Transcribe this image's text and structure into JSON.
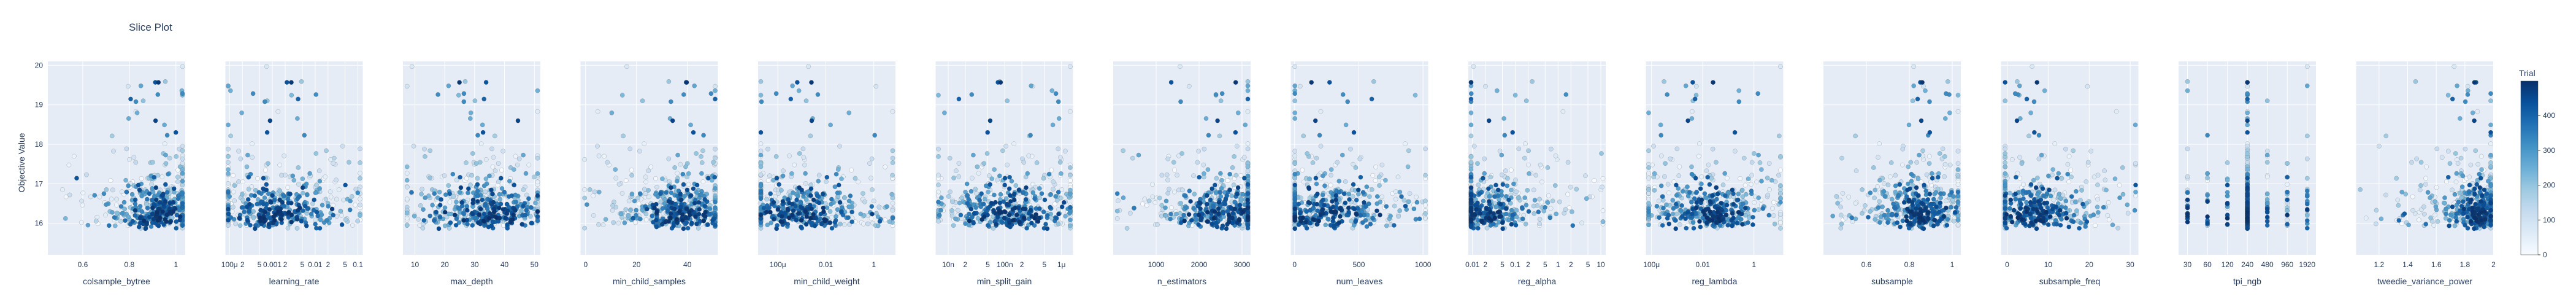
{
  "chart_data": {
    "type": "scatter",
    "title": "Slice Plot",
    "ylabel": "Objective Value",
    "ylim": [
      15.2,
      20.1
    ],
    "y_ticks": [
      16,
      17,
      18,
      19,
      20
    ],
    "grid": true,
    "colorbar": {
      "title": "Trial",
      "range": [
        0,
        499
      ],
      "ticks": [
        0,
        100,
        200,
        300,
        400
      ],
      "colors": [
        "#f7fbff",
        "#deebf7",
        "#c6dbef",
        "#9ecae1",
        "#6baed6",
        "#4292c6",
        "#2171b5",
        "#08519c",
        "#08306b"
      ]
    },
    "subplots": [
      {
        "param": "colsample_bytree",
        "scale": "linear",
        "xlim": [
          0.45,
          1.04
        ],
        "ticks": [
          {
            "v": 0.6,
            "t": "0.6"
          },
          {
            "v": 0.8,
            "t": "0.8"
          },
          {
            "v": 1.0,
            "t": "1"
          }
        ],
        "center": 0.93,
        "spread": 0.04
      },
      {
        "param": "learning_rate",
        "scale": "log",
        "xlim": [
          8e-05,
          0.13
        ],
        "ticks": [
          {
            "v": 0.0001,
            "t": "100μ"
          },
          {
            "v": 0.0002,
            "t": "2"
          },
          {
            "v": 0.0005,
            "t": "5"
          },
          {
            "v": 0.001,
            "t": "0.001"
          },
          {
            "v": 0.002,
            "t": "2"
          },
          {
            "v": 0.005,
            "t": "5"
          },
          {
            "v": 0.01,
            "t": "0.01"
          },
          {
            "v": 0.02,
            "t": "2"
          },
          {
            "v": 0.05,
            "t": "5"
          },
          {
            "v": 0.1,
            "t": "0.1"
          }
        ],
        "center": 0.0012,
        "spread": 0.35
      },
      {
        "param": "max_depth",
        "scale": "linear",
        "xlim": [
          6,
          52
        ],
        "ticks": [
          {
            "v": 10,
            "t": "10"
          },
          {
            "v": 20,
            "t": "20"
          },
          {
            "v": 30,
            "t": "30"
          },
          {
            "v": 40,
            "t": "40"
          },
          {
            "v": 50,
            "t": "50"
          }
        ],
        "center": 33,
        "spread": 6
      },
      {
        "param": "min_child_samples",
        "scale": "linear",
        "xlim": [
          -2,
          52
        ],
        "ticks": [
          {
            "v": 0,
            "t": "0"
          },
          {
            "v": 20,
            "t": "20"
          },
          {
            "v": 40,
            "t": "40"
          }
        ],
        "center": 38,
        "spread": 6
      },
      {
        "param": "min_child_weight",
        "scale": "log",
        "xlim": [
          1.5e-05,
          8
        ],
        "ticks": [
          {
            "v": 0.0001,
            "t": "100μ"
          },
          {
            "v": 0.01,
            "t": "0.01"
          },
          {
            "v": 1,
            "t": "1"
          }
        ],
        "center": 0.0008,
        "spread": 0.7
      },
      {
        "param": "min_split_gain",
        "scale": "log",
        "xlim": [
          6e-09,
          1.6e-06
        ],
        "ticks": [
          {
            "v": 1e-08,
            "t": "10n"
          },
          {
            "v": 2e-08,
            "t": "2"
          },
          {
            "v": 5e-08,
            "t": "5"
          },
          {
            "v": 1e-07,
            "t": "100n"
          },
          {
            "v": 2e-07,
            "t": "2"
          },
          {
            "v": 5e-07,
            "t": "5"
          },
          {
            "v": 1e-06,
            "t": "1μ"
          }
        ],
        "center": 1.2e-07,
        "spread": 0.3
      },
      {
        "param": "n_estimators",
        "scale": "linear",
        "xlim": [
          0,
          3200
        ],
        "ticks": [
          {
            "v": 1000,
            "t": "1000"
          },
          {
            "v": 2000,
            "t": "2000"
          },
          {
            "v": 3000,
            "t": "3000"
          }
        ],
        "center": 2600,
        "spread": 350
      },
      {
        "param": "num_leaves",
        "scale": "linear",
        "xlim": [
          -30,
          1040
        ],
        "ticks": [
          {
            "v": 0,
            "t": "0"
          },
          {
            "v": 500,
            "t": "500"
          },
          {
            "v": 1000,
            "t": "1000"
          }
        ],
        "center": 200,
        "spread": 200
      },
      {
        "param": "reg_alpha",
        "scale": "log",
        "xlim": [
          0.008,
          13
        ],
        "ticks": [
          {
            "v": 0.01,
            "t": "0.01"
          },
          {
            "v": 0.02,
            "t": "2"
          },
          {
            "v": 0.05,
            "t": "5"
          },
          {
            "v": 0.1,
            "t": "0.1"
          },
          {
            "v": 0.2,
            "t": "2"
          },
          {
            "v": 0.5,
            "t": "5"
          },
          {
            "v": 1,
            "t": "1"
          },
          {
            "v": 2,
            "t": "2"
          },
          {
            "v": 5,
            "t": "5"
          },
          {
            "v": 10,
            "t": "10"
          }
        ],
        "center": 0.015,
        "spread": 0.25
      },
      {
        "param": "reg_lambda",
        "scale": "log",
        "xlim": [
          6e-05,
          14
        ],
        "ticks": [
          {
            "v": 0.0001,
            "t": "100μ"
          },
          {
            "v": 0.01,
            "t": "0.01"
          },
          {
            "v": 1,
            "t": "1"
          }
        ],
        "center": 0.02,
        "spread": 0.5
      },
      {
        "param": "subsample",
        "scale": "linear",
        "xlim": [
          0.4,
          1.04
        ],
        "ticks": [
          {
            "v": 0.6,
            "t": "0.6"
          },
          {
            "v": 0.8,
            "t": "0.8"
          },
          {
            "v": 1.0,
            "t": "1"
          }
        ],
        "center": 0.86,
        "spread": 0.04
      },
      {
        "param": "subsample_freq",
        "scale": "linear",
        "xlim": [
          -1.5,
          32
        ],
        "ticks": [
          {
            "v": 0,
            "t": "0"
          },
          {
            "v": 10,
            "t": "10"
          },
          {
            "v": 20,
            "t": "20"
          },
          {
            "v": 30,
            "t": "30"
          }
        ],
        "center": 6,
        "spread": 4
      },
      {
        "param": "tpi_ngb",
        "scale": "log",
        "xlim": [
          22,
          2600
        ],
        "ticks": [
          {
            "v": 30,
            "t": "30"
          },
          {
            "v": 60,
            "t": "60"
          },
          {
            "v": 120,
            "t": "120"
          },
          {
            "v": 240,
            "t": "240"
          },
          {
            "v": 480,
            "t": "480"
          },
          {
            "v": 960,
            "t": "960"
          },
          {
            "v": 1920,
            "t": "1920"
          }
        ],
        "discrete": [
          30,
          60,
          120,
          240,
          480,
          960,
          1920
        ],
        "center": 240,
        "spread": 0
      },
      {
        "param": "tweedie_variance_power",
        "scale": "linear",
        "xlim": [
          1.04,
          2.0
        ],
        "ticks": [
          {
            "v": 1.2,
            "t": "1.2"
          },
          {
            "v": 1.4,
            "t": "1.4"
          },
          {
            "v": 1.6,
            "t": "1.6"
          },
          {
            "v": 1.8,
            "t": "1.8"
          },
          {
            "v": 2.0,
            "t": "2"
          }
        ],
        "center": 1.9,
        "spread": 0.04
      }
    ]
  },
  "colors": {
    "plot_bg": "#e5ecf6",
    "grid": "#ffffff",
    "text": "#2a3f5f",
    "marker_edge": "#444444"
  }
}
